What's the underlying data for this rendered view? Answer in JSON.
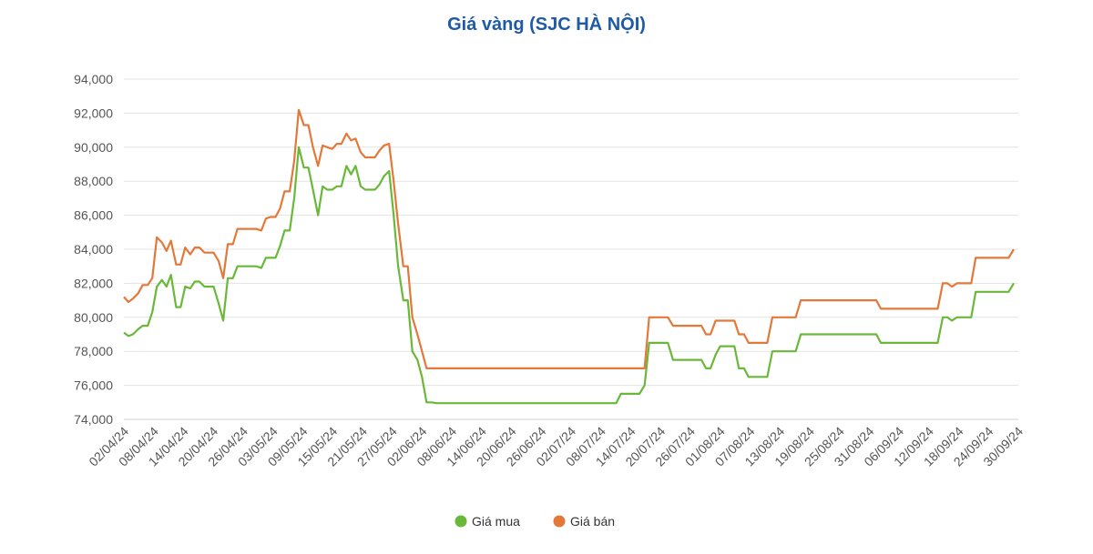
{
  "chart_data": {
    "type": "line",
    "title": "Giá vàng (SJC HÀ NỘI)",
    "xlabel": "",
    "ylabel": "",
    "ylim": [
      74000,
      94000
    ],
    "y_ticks": [
      "74,000",
      "76,000",
      "78,000",
      "80,000",
      "82,000",
      "84,000",
      "86,000",
      "88,000",
      "90,000",
      "92,000",
      "94,000"
    ],
    "x_ticks": [
      "02/04/24",
      "08/04/24",
      "14/04/24",
      "20/04/24",
      "26/04/24",
      "03/05/24",
      "09/05/24",
      "15/05/24",
      "21/05/24",
      "27/05/24",
      "02/06/24",
      "08/06/24",
      "14/06/24",
      "20/06/24",
      "26/06/24",
      "02/07/24",
      "08/07/24",
      "14/07/24",
      "20/07/24",
      "26/07/24",
      "01/08/24",
      "07/08/24",
      "13/08/24",
      "19/08/24",
      "25/08/24",
      "31/08/24",
      "06/09/24",
      "12/09/24",
      "18/09/24",
      "24/09/24",
      "30/09/24"
    ],
    "grid": true,
    "legend_position": "bottom",
    "colors": {
      "buy": "#6ab83a",
      "sell": "#e2793a",
      "title": "#1f5aa6"
    },
    "series": [
      {
        "name": "Giá mua",
        "values": [
          [
            0,
            79100
          ],
          [
            0.8,
            78900
          ],
          [
            1.6,
            79000
          ],
          [
            2.5,
            79300
          ],
          [
            3.3,
            79500
          ],
          [
            4.2,
            79500
          ],
          [
            5,
            80300
          ],
          [
            5.8,
            81800
          ],
          [
            6.7,
            82200
          ],
          [
            7.5,
            81800
          ],
          [
            8.3,
            82500
          ],
          [
            9.2,
            80600
          ],
          [
            10,
            80600
          ],
          [
            10.8,
            81800
          ],
          [
            11.7,
            81700
          ],
          [
            12.5,
            82100
          ],
          [
            13.3,
            82100
          ],
          [
            14.2,
            81800
          ],
          [
            15,
            81800
          ],
          [
            15.8,
            81800
          ],
          [
            16.7,
            80800
          ],
          [
            17.5,
            79800
          ],
          [
            18.3,
            82300
          ],
          [
            19.2,
            82300
          ],
          [
            20,
            83000
          ],
          [
            20.8,
            83000
          ],
          [
            21.7,
            83000
          ],
          [
            22.5,
            83000
          ],
          [
            23.3,
            83000
          ],
          [
            24.2,
            82900
          ],
          [
            25,
            83500
          ],
          [
            25.8,
            83500
          ],
          [
            26.7,
            83500
          ],
          [
            27.5,
            84200
          ],
          [
            28.3,
            85100
          ],
          [
            29.2,
            85100
          ],
          [
            30,
            87000
          ],
          [
            30.8,
            90000
          ],
          [
            31.7,
            88800
          ],
          [
            32.5,
            88800
          ],
          [
            33.3,
            87500
          ],
          [
            34.2,
            86000
          ],
          [
            35,
            87700
          ],
          [
            35.8,
            87500
          ],
          [
            36.7,
            87500
          ],
          [
            37.5,
            87700
          ],
          [
            38.3,
            87700
          ],
          [
            39.2,
            88900
          ],
          [
            40,
            88400
          ],
          [
            40.8,
            88900
          ],
          [
            41.7,
            87700
          ],
          [
            42.5,
            87500
          ],
          [
            43.3,
            87500
          ],
          [
            44.2,
            87500
          ],
          [
            45,
            87800
          ],
          [
            45.8,
            88300
          ],
          [
            46.7,
            88600
          ],
          [
            47.5,
            86000
          ],
          [
            48.3,
            83000
          ],
          [
            49.2,
            81000
          ],
          [
            50,
            81000
          ],
          [
            50.8,
            78000
          ],
          [
            51.7,
            77500
          ],
          [
            52.5,
            76500
          ],
          [
            53.3,
            75000
          ],
          [
            54.2,
            75000
          ],
          [
            55,
            74950
          ],
          [
            60,
            74950
          ],
          [
            70,
            74950
          ],
          [
            80,
            74950
          ],
          [
            85.8,
            74950
          ],
          [
            86.7,
            74950
          ],
          [
            87.5,
            75500
          ],
          [
            88.3,
            75500
          ],
          [
            89.2,
            75500
          ],
          [
            90,
            75500
          ],
          [
            90.8,
            75500
          ],
          [
            91.7,
            76000
          ],
          [
            92.5,
            78500
          ],
          [
            93.3,
            78500
          ],
          [
            94.2,
            78500
          ],
          [
            95,
            78500
          ],
          [
            95.8,
            78500
          ],
          [
            96.7,
            77500
          ],
          [
            97.5,
            77500
          ],
          [
            98.3,
            77500
          ],
          [
            99.2,
            77500
          ],
          [
            100,
            77500
          ],
          [
            100.8,
            77500
          ],
          [
            101.7,
            77500
          ],
          [
            102.5,
            77000
          ],
          [
            103.3,
            77000
          ],
          [
            104.2,
            77800
          ],
          [
            105,
            78300
          ],
          [
            105.8,
            78300
          ],
          [
            106.7,
            78300
          ],
          [
            107.5,
            78300
          ],
          [
            108.3,
            77000
          ],
          [
            109.2,
            77000
          ],
          [
            110,
            76500
          ],
          [
            110.8,
            76500
          ],
          [
            111.7,
            76500
          ],
          [
            112.5,
            76500
          ],
          [
            113.3,
            76500
          ],
          [
            114.2,
            78000
          ],
          [
            115,
            78000
          ],
          [
            115.8,
            78000
          ],
          [
            116.7,
            78000
          ],
          [
            117.5,
            78000
          ],
          [
            118.3,
            78000
          ],
          [
            119.2,
            79000
          ],
          [
            120,
            79000
          ],
          [
            125,
            79000
          ],
          [
            130,
            79000
          ],
          [
            132.5,
            79000
          ],
          [
            133.3,
            78500
          ],
          [
            134.2,
            78500
          ],
          [
            140,
            78500
          ],
          [
            143.3,
            78500
          ],
          [
            144.2,
            80000
          ],
          [
            145,
            80000
          ],
          [
            145.8,
            79800
          ],
          [
            146.7,
            80000
          ],
          [
            147.5,
            80000
          ],
          [
            148.3,
            80000
          ],
          [
            149.2,
            80000
          ],
          [
            150,
            81500
          ],
          [
            152.5,
            81500
          ],
          [
            155,
            81500
          ],
          [
            155.8,
            81500
          ],
          [
            156.7,
            82000
          ]
        ]
      },
      {
        "name": "Giá bán",
        "values": [
          [
            0,
            81200
          ],
          [
            0.8,
            80900
          ],
          [
            1.6,
            81100
          ],
          [
            2.5,
            81400
          ],
          [
            3.3,
            81900
          ],
          [
            4.2,
            81900
          ],
          [
            5,
            82300
          ],
          [
            5.8,
            84700
          ],
          [
            6.7,
            84400
          ],
          [
            7.5,
            83900
          ],
          [
            8.3,
            84500
          ],
          [
            9.2,
            83100
          ],
          [
            10,
            83100
          ],
          [
            10.8,
            84100
          ],
          [
            11.7,
            83700
          ],
          [
            12.5,
            84100
          ],
          [
            13.3,
            84100
          ],
          [
            14.2,
            83800
          ],
          [
            15,
            83800
          ],
          [
            15.8,
            83800
          ],
          [
            16.7,
            83300
          ],
          [
            17.5,
            82300
          ],
          [
            18.3,
            84300
          ],
          [
            19.2,
            84300
          ],
          [
            20,
            85200
          ],
          [
            20.8,
            85200
          ],
          [
            21.7,
            85200
          ],
          [
            22.5,
            85200
          ],
          [
            23.3,
            85200
          ],
          [
            24.2,
            85100
          ],
          [
            25,
            85800
          ],
          [
            25.8,
            85900
          ],
          [
            26.7,
            85900
          ],
          [
            27.5,
            86400
          ],
          [
            28.3,
            87400
          ],
          [
            29.2,
            87400
          ],
          [
            30,
            89200
          ],
          [
            30.8,
            92200
          ],
          [
            31.7,
            91300
          ],
          [
            32.5,
            91300
          ],
          [
            33.3,
            90000
          ],
          [
            34.2,
            88900
          ],
          [
            35,
            90100
          ],
          [
            35.8,
            90000
          ],
          [
            36.7,
            89900
          ],
          [
            37.5,
            90200
          ],
          [
            38.3,
            90200
          ],
          [
            39.2,
            90800
          ],
          [
            40,
            90400
          ],
          [
            40.8,
            90500
          ],
          [
            41.7,
            89700
          ],
          [
            42.5,
            89400
          ],
          [
            43.3,
            89400
          ],
          [
            44.2,
            89400
          ],
          [
            45,
            89800
          ],
          [
            45.8,
            90100
          ],
          [
            46.7,
            90200
          ],
          [
            47.5,
            88000
          ],
          [
            48.3,
            85500
          ],
          [
            49.2,
            83000
          ],
          [
            50,
            83000
          ],
          [
            50.8,
            80000
          ],
          [
            51.7,
            79000
          ],
          [
            52.5,
            78000
          ],
          [
            53.3,
            77000
          ],
          [
            54.2,
            77000
          ],
          [
            60,
            77000
          ],
          [
            70,
            77000
          ],
          [
            80,
            77000
          ],
          [
            90,
            77000
          ],
          [
            91.7,
            77000
          ],
          [
            92.5,
            80000
          ],
          [
            93.3,
            80000
          ],
          [
            94.2,
            80000
          ],
          [
            95,
            80000
          ],
          [
            95.8,
            80000
          ],
          [
            96.7,
            79500
          ],
          [
            97.5,
            79500
          ],
          [
            98.3,
            79500
          ],
          [
            99.2,
            79500
          ],
          [
            100,
            79500
          ],
          [
            100.8,
            79500
          ],
          [
            101.7,
            79500
          ],
          [
            102.5,
            79000
          ],
          [
            103.3,
            79000
          ],
          [
            104.2,
            79800
          ],
          [
            105,
            79800
          ],
          [
            105.8,
            79800
          ],
          [
            106.7,
            79800
          ],
          [
            107.5,
            79800
          ],
          [
            108.3,
            79000
          ],
          [
            109.2,
            79000
          ],
          [
            110,
            78500
          ],
          [
            110.8,
            78500
          ],
          [
            111.7,
            78500
          ],
          [
            112.5,
            78500
          ],
          [
            113.3,
            78500
          ],
          [
            114.2,
            80000
          ],
          [
            115,
            80000
          ],
          [
            115.8,
            80000
          ],
          [
            116.7,
            80000
          ],
          [
            117.5,
            80000
          ],
          [
            118.3,
            80000
          ],
          [
            119.2,
            81000
          ],
          [
            120,
            81000
          ],
          [
            125,
            81000
          ],
          [
            130,
            81000
          ],
          [
            132.5,
            81000
          ],
          [
            133.3,
            80500
          ],
          [
            134.2,
            80500
          ],
          [
            140,
            80500
          ],
          [
            143.3,
            80500
          ],
          [
            144.2,
            82000
          ],
          [
            145,
            82000
          ],
          [
            145.8,
            81800
          ],
          [
            146.7,
            82000
          ],
          [
            147.5,
            82000
          ],
          [
            148.3,
            82000
          ],
          [
            149.2,
            82000
          ],
          [
            150,
            83500
          ],
          [
            152.5,
            83500
          ],
          [
            155,
            83500
          ],
          [
            155.8,
            83500
          ],
          [
            156.7,
            84000
          ]
        ]
      }
    ]
  }
}
